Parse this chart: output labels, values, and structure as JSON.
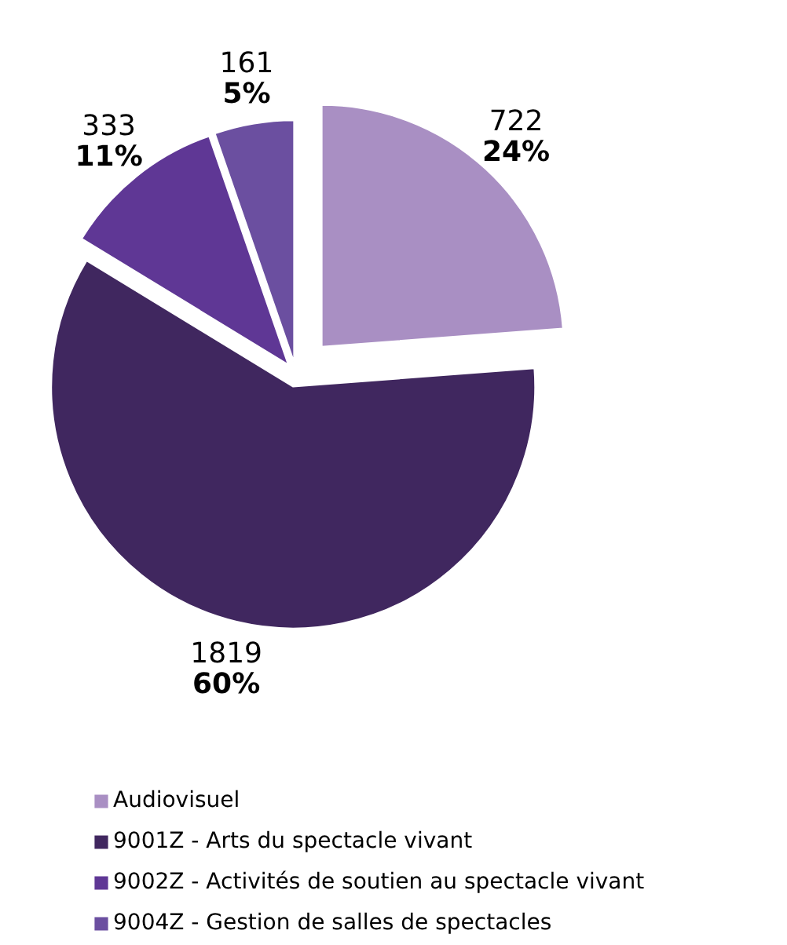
{
  "chart_data": {
    "type": "pie",
    "categories": [
      "Audiovisuel",
      "9001Z - Arts du spectacle vivant",
      "9002Z - Activités de soutien au spectacle vivant",
      "9004Z - Gestion de salles de spectacles"
    ],
    "values": [
      722,
      1819,
      333,
      161
    ],
    "colors": [
      "#a98fc3",
      "#40275f",
      "#5f3795",
      "#6b4fa0"
    ],
    "value_labels": [
      "722\n24%",
      "1819\n60%",
      "333\n11%",
      "161\n5%"
    ],
    "legend": "bottom"
  }
}
